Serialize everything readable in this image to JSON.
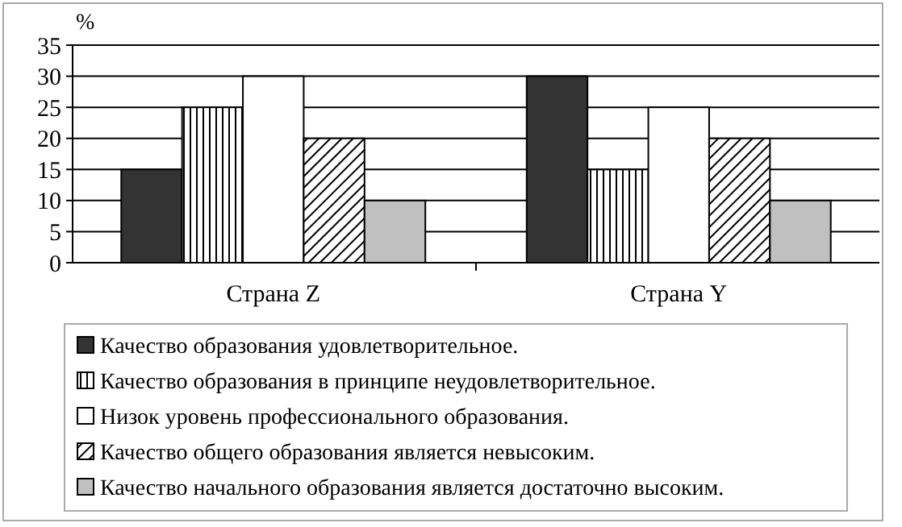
{
  "chart_data": {
    "type": "bar",
    "ylabel": "%",
    "categories": [
      "Страна Z",
      "Страна Y"
    ],
    "series": [
      {
        "name": "Качество образования удовлетворительное.",
        "color": "#333333",
        "values": [
          15,
          30
        ]
      },
      {
        "name": "Качество образования в принципе неудовлетворительное.",
        "color": "#000000",
        "values": [
          25,
          15
        ]
      },
      {
        "name": "Низок уровень профессионального образования.",
        "color": "#ffffff",
        "values": [
          30,
          25
        ]
      },
      {
        "name": "Качество общего образования является невысоким.",
        "color": "#000000",
        "values": [
          20,
          20
        ]
      },
      {
        "name": "Качество начального образования является достаточно высоким.",
        "color": "#c0c0c0",
        "values": [
          10,
          10
        ]
      }
    ],
    "ylim": [
      0,
      35
    ],
    "yticks": [
      0,
      5,
      10,
      15,
      20,
      25,
      30,
      35
    ],
    "grid": "y",
    "legend": "bottom"
  }
}
